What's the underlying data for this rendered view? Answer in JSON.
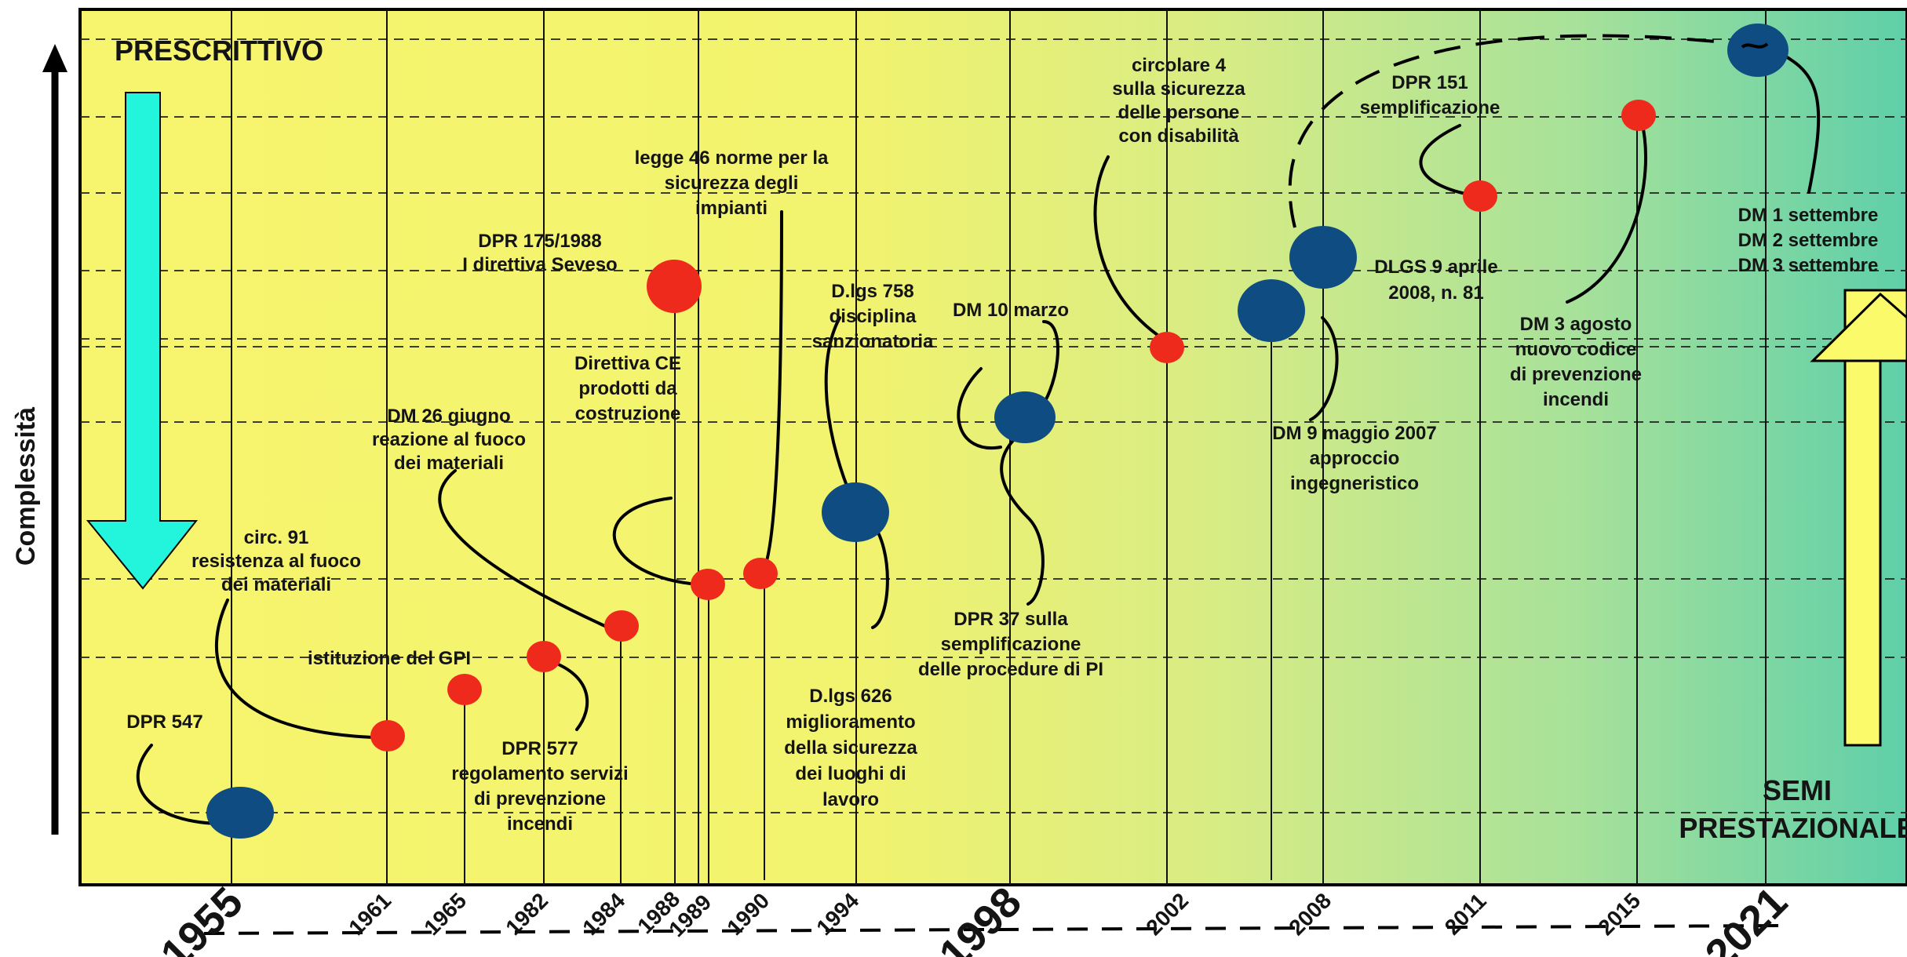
{
  "y_axis_label": "Complessità",
  "top_left_label": "PRESCRITTIVO",
  "bottom_right_label": [
    "SEMI",
    "PRESTAZIONALE"
  ],
  "years": [
    {
      "label": "1955",
      "big": true
    },
    {
      "label": "1961",
      "big": false
    },
    {
      "label": "1965",
      "big": false
    },
    {
      "label": "1982",
      "big": false
    },
    {
      "label": "1984",
      "big": false
    },
    {
      "label": "1988",
      "big": false
    },
    {
      "label": "1989",
      "big": false
    },
    {
      "label": "1990",
      "big": false
    },
    {
      "label": "1994",
      "big": false
    },
    {
      "label": "1998",
      "big": true
    },
    {
      "label": "2002",
      "big": false
    },
    {
      "label": "2008",
      "big": false
    },
    {
      "label": "2011",
      "big": false
    },
    {
      "label": "2015",
      "big": false
    },
    {
      "label": "2021",
      "big": true
    }
  ],
  "events": [
    {
      "text": [
        "DPR 547"
      ],
      "kind": "major",
      "color": "#0f4c81"
    },
    {
      "text": [
        "circ. 91",
        "resistenza al fuoco",
        "dei materiali"
      ],
      "kind": "minor",
      "color": "#ee2a1c"
    },
    {
      "text": [
        "istituzione del GPI"
      ],
      "kind": "minor",
      "color": "#ee2a1c"
    },
    {
      "text": [
        "DPR 577",
        "regolamento servizi",
        "di prevenzione",
        "incendi"
      ],
      "kind": "minor",
      "color": "#ee2a1c"
    },
    {
      "text": [
        "DM 26 giugno",
        "reazione al fuoco",
        "dei materiali"
      ],
      "kind": "minor",
      "color": "#ee2a1c"
    },
    {
      "text": [
        "DPR 175/1988",
        "I direttiva Seveso"
      ],
      "kind": "large-red",
      "color": "#ee2a1c"
    },
    {
      "text": [
        "Direttiva CE",
        "prodotti   da",
        "costruzione"
      ],
      "kind": "minor",
      "color": "#ee2a1c"
    },
    {
      "text": [
        "legge 46 norme per la",
        "sicurezza degli",
        "impianti"
      ],
      "kind": "minor",
      "color": "#ee2a1c"
    },
    {
      "text": [
        "D.lgs 758",
        "disciplina",
        "sanzionatoria"
      ],
      "kind": "major",
      "color": "#0f4c81"
    },
    {
      "text": [
        "D.lgs 626",
        "miglioramento",
        "della sicurezza",
        "dei luoghi di",
        "lavoro"
      ],
      "kind": "major",
      "color": "#0f4c81"
    },
    {
      "text": [
        "DM 10 marzo"
      ],
      "kind": "major",
      "color": "#0f4c81"
    },
    {
      "text": [
        "DPR 37 sulla",
        "semplificazione",
        "delle procedure di PI"
      ],
      "kind": "major",
      "color": "#0f4c81"
    },
    {
      "text": [
        "circolare 4",
        "sulla sicurezza",
        "delle persone",
        "con disabilità"
      ],
      "kind": "minor",
      "color": "#ee2a1c"
    },
    {
      "text": [
        "DM 9 maggio 2007",
        "approccio",
        "ingegneristico"
      ],
      "kind": "major",
      "color": "#0f4c81"
    },
    {
      "text": [
        "DLGS 9 aprile",
        "2008, n. 81"
      ],
      "kind": "major",
      "color": "#0f4c81"
    },
    {
      "text": [
        "DPR 151",
        "semplificazione"
      ],
      "kind": "minor",
      "color": "#ee2a1c"
    },
    {
      "text": [
        "DM 3 agosto",
        "nuovo codice",
        "di prevenzione",
        "incendi"
      ],
      "kind": "minor",
      "color": "#ee2a1c"
    },
    {
      "text": [
        "DM 1 settembre",
        "DM 2 settembre",
        "DM 3 settembre"
      ],
      "kind": "major",
      "color": "#0f4c81"
    }
  ],
  "colors": {
    "bg_left": "#f7f56d",
    "bg_mid": "#cfe98a",
    "bg_right": "#5fcfa9",
    "down_arrow": "#22f5db",
    "up_arrow": "#fbfa6a",
    "dot_red": "#ee2a1c",
    "dot_blue": "#0f4c81"
  }
}
